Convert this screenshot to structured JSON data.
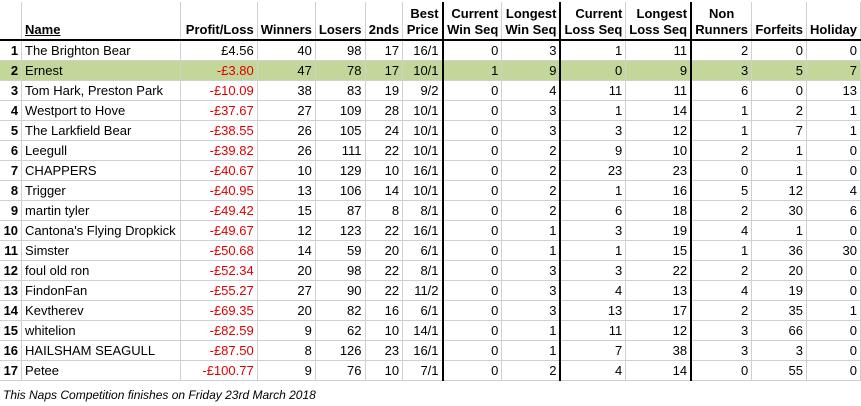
{
  "headers": {
    "rank": "",
    "name": "Name",
    "profit_loss": "Profit/Loss",
    "winners": "Winners",
    "losers": "Losers",
    "seconds": "2nds",
    "best_price": [
      "Best",
      "Price"
    ],
    "current_win_seq": [
      "Current",
      "Win Seq"
    ],
    "longest_win_seq": [
      "Longest",
      "Win Seq"
    ],
    "current_loss_seq": [
      "Current",
      "Loss Seq"
    ],
    "longest_loss_seq": [
      "Longest",
      "Loss Seq"
    ],
    "non_runners": [
      "Non",
      "Runners"
    ],
    "forfeits": "Forfeits",
    "holiday": "Holiday"
  },
  "highlight_color": "#c4d79b",
  "loss_color": "#e00000",
  "rows": [
    {
      "rank": "1",
      "name": "The Brighton Bear",
      "profit_loss": "£4.56",
      "winners": "40",
      "losers": "98",
      "seconds": "17",
      "best_price": "16/1",
      "current_win_seq": "0",
      "longest_win_seq": "3",
      "current_loss_seq": "1",
      "longest_loss_seq": "11",
      "non_runners": "2",
      "forfeits": "0",
      "holiday": "0"
    },
    {
      "rank": "2",
      "name": "Ernest",
      "profit_loss": "-£3.80",
      "winners": "47",
      "losers": "78",
      "seconds": "17",
      "best_price": "10/1",
      "current_win_seq": "1",
      "longest_win_seq": "9",
      "current_loss_seq": "0",
      "longest_loss_seq": "9",
      "non_runners": "3",
      "forfeits": "5",
      "holiday": "7"
    },
    {
      "rank": "3",
      "name": "Tom Hark, Preston Park",
      "profit_loss": "-£10.09",
      "winners": "38",
      "losers": "83",
      "seconds": "19",
      "best_price": "9/2",
      "current_win_seq": "0",
      "longest_win_seq": "4",
      "current_loss_seq": "11",
      "longest_loss_seq": "11",
      "non_runners": "6",
      "forfeits": "0",
      "holiday": "13"
    },
    {
      "rank": "4",
      "name": "Westport to Hove",
      "profit_loss": "-£37.67",
      "winners": "27",
      "losers": "109",
      "seconds": "28",
      "best_price": "10/1",
      "current_win_seq": "0",
      "longest_win_seq": "3",
      "current_loss_seq": "1",
      "longest_loss_seq": "14",
      "non_runners": "1",
      "forfeits": "2",
      "holiday": "1"
    },
    {
      "rank": "5",
      "name": "The Larkfield Bear",
      "profit_loss": "-£38.55",
      "winners": "26",
      "losers": "105",
      "seconds": "24",
      "best_price": "10/1",
      "current_win_seq": "0",
      "longest_win_seq": "3",
      "current_loss_seq": "3",
      "longest_loss_seq": "12",
      "non_runners": "1",
      "forfeits": "7",
      "holiday": "1"
    },
    {
      "rank": "6",
      "name": "Leegull",
      "profit_loss": "-£39.82",
      "winners": "26",
      "losers": "111",
      "seconds": "22",
      "best_price": "10/1",
      "current_win_seq": "0",
      "longest_win_seq": "2",
      "current_loss_seq": "9",
      "longest_loss_seq": "10",
      "non_runners": "2",
      "forfeits": "1",
      "holiday": "0"
    },
    {
      "rank": "7",
      "name": "CHAPPERS",
      "profit_loss": "-£40.67",
      "winners": "10",
      "losers": "129",
      "seconds": "10",
      "best_price": "16/1",
      "current_win_seq": "0",
      "longest_win_seq": "2",
      "current_loss_seq": "23",
      "longest_loss_seq": "23",
      "non_runners": "0",
      "forfeits": "1",
      "holiday": "0"
    },
    {
      "rank": "8",
      "name": "Trigger",
      "profit_loss": "-£40.95",
      "winners": "13",
      "losers": "106",
      "seconds": "14",
      "best_price": "10/1",
      "current_win_seq": "0",
      "longest_win_seq": "2",
      "current_loss_seq": "1",
      "longest_loss_seq": "16",
      "non_runners": "5",
      "forfeits": "12",
      "holiday": "4"
    },
    {
      "rank": "9",
      "name": "martin tyler",
      "profit_loss": "-£49.42",
      "winners": "15",
      "losers": "87",
      "seconds": "8",
      "best_price": "8/1",
      "current_win_seq": "0",
      "longest_win_seq": "2",
      "current_loss_seq": "6",
      "longest_loss_seq": "18",
      "non_runners": "2",
      "forfeits": "30",
      "holiday": "6"
    },
    {
      "rank": "10",
      "name": "Cantona's Flying Dropkick",
      "profit_loss": "-£49.67",
      "winners": "12",
      "losers": "123",
      "seconds": "22",
      "best_price": "16/1",
      "current_win_seq": "0",
      "longest_win_seq": "1",
      "current_loss_seq": "3",
      "longest_loss_seq": "19",
      "non_runners": "4",
      "forfeits": "1",
      "holiday": "0"
    },
    {
      "rank": "11",
      "name": "Simster",
      "profit_loss": "-£50.68",
      "winners": "14",
      "losers": "59",
      "seconds": "20",
      "best_price": "6/1",
      "current_win_seq": "0",
      "longest_win_seq": "1",
      "current_loss_seq": "1",
      "longest_loss_seq": "15",
      "non_runners": "1",
      "forfeits": "36",
      "holiday": "30"
    },
    {
      "rank": "12",
      "name": "foul old ron",
      "profit_loss": "-£52.34",
      "winners": "20",
      "losers": "98",
      "seconds": "22",
      "best_price": "8/1",
      "current_win_seq": "0",
      "longest_win_seq": "3",
      "current_loss_seq": "3",
      "longest_loss_seq": "22",
      "non_runners": "2",
      "forfeits": "20",
      "holiday": "0"
    },
    {
      "rank": "13",
      "name": "FindonFan",
      "profit_loss": "-£55.27",
      "winners": "27",
      "losers": "90",
      "seconds": "22",
      "best_price": "11/2",
      "current_win_seq": "0",
      "longest_win_seq": "3",
      "current_loss_seq": "4",
      "longest_loss_seq": "13",
      "non_runners": "4",
      "forfeits": "19",
      "holiday": "0"
    },
    {
      "rank": "14",
      "name": "Kevtherev",
      "profit_loss": "-£69.35",
      "winners": "20",
      "losers": "82",
      "seconds": "16",
      "best_price": "6/1",
      "current_win_seq": "0",
      "longest_win_seq": "3",
      "current_loss_seq": "13",
      "longest_loss_seq": "17",
      "non_runners": "2",
      "forfeits": "35",
      "holiday": "1"
    },
    {
      "rank": "15",
      "name": "whitelion",
      "profit_loss": "-£82.59",
      "winners": "9",
      "losers": "62",
      "seconds": "10",
      "best_price": "14/1",
      "current_win_seq": "0",
      "longest_win_seq": "1",
      "current_loss_seq": "11",
      "longest_loss_seq": "12",
      "non_runners": "3",
      "forfeits": "66",
      "holiday": "0"
    },
    {
      "rank": "16",
      "name": "HAILSHAM SEAGULL",
      "profit_loss": "-£87.50",
      "winners": "8",
      "losers": "126",
      "seconds": "23",
      "best_price": "16/1",
      "current_win_seq": "0",
      "longest_win_seq": "1",
      "current_loss_seq": "7",
      "longest_loss_seq": "38",
      "non_runners": "3",
      "forfeits": "3",
      "holiday": "0"
    },
    {
      "rank": "17",
      "name": "Petee",
      "profit_loss": "-£100.77",
      "winners": "9",
      "losers": "76",
      "seconds": "10",
      "best_price": "7/1",
      "current_win_seq": "0",
      "longest_win_seq": "2",
      "current_loss_seq": "4",
      "longest_loss_seq": "14",
      "non_runners": "0",
      "forfeits": "55",
      "holiday": "0"
    }
  ],
  "footer": "This Naps Competition finishes on Friday 23rd March 2018"
}
